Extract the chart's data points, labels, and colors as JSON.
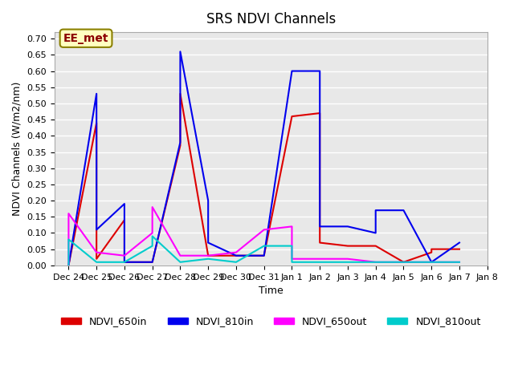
{
  "title": "SRS NDVI Channels",
  "xlabel": "Time",
  "ylabel": "NDVI Channels (W/m2/nm)",
  "annotation_text": "EE_met",
  "annotation_color": "#8B0000",
  "annotation_bg": "#FFFFC0",
  "annotation_border": "#8B8000",
  "ylim": [
    0.0,
    0.72
  ],
  "yticks": [
    0.0,
    0.05,
    0.1,
    0.15,
    0.2,
    0.25,
    0.3,
    0.35,
    0.4,
    0.45,
    0.5,
    0.55,
    0.6,
    0.65,
    0.7
  ],
  "background_color": "#E8E8E8",
  "grid_color": "#FFFFFF",
  "series": {
    "NDVI_650in": {
      "color": "#DD0000",
      "linewidth": 1.5,
      "x_days": [
        0,
        1,
        1,
        2,
        2,
        3,
        4,
        4,
        5,
        6,
        7,
        8,
        9,
        9,
        10,
        11,
        12,
        13,
        13,
        14
      ],
      "y": [
        0.0,
        0.44,
        0.02,
        0.14,
        0.01,
        0.01,
        0.37,
        0.53,
        0.03,
        0.03,
        0.03,
        0.46,
        0.47,
        0.07,
        0.06,
        0.06,
        0.01,
        0.04,
        0.05,
        0.05
      ]
    },
    "NDVI_810in": {
      "color": "#0000EE",
      "linewidth": 1.5,
      "x_days": [
        0,
        1,
        1,
        2,
        2,
        3,
        4,
        4,
        5,
        5,
        6,
        7,
        8,
        9,
        9,
        10,
        11,
        11,
        12,
        13,
        14
      ],
      "y": [
        0.0,
        0.53,
        0.11,
        0.19,
        0.01,
        0.01,
        0.38,
        0.66,
        0.2,
        0.07,
        0.03,
        0.03,
        0.6,
        0.6,
        0.12,
        0.12,
        0.1,
        0.17,
        0.17,
        0.01,
        0.07
      ]
    },
    "NDVI_650out": {
      "color": "#FF00FF",
      "linewidth": 1.5,
      "x_days": [
        0,
        0,
        1,
        2,
        3,
        3,
        4,
        5,
        6,
        7,
        8,
        8,
        9,
        10,
        11,
        12,
        13,
        14
      ],
      "y": [
        0.0,
        0.16,
        0.04,
        0.03,
        0.1,
        0.18,
        0.03,
        0.03,
        0.04,
        0.11,
        0.12,
        0.02,
        0.02,
        0.02,
        0.01,
        0.01,
        0.01,
        0.01
      ]
    },
    "NDVI_810out": {
      "color": "#00CCCC",
      "linewidth": 1.5,
      "x_days": [
        0,
        0,
        1,
        2,
        3,
        3,
        4,
        5,
        6,
        7,
        8,
        8,
        9,
        10,
        11,
        12,
        13,
        14
      ],
      "y": [
        0.0,
        0.08,
        0.01,
        0.01,
        0.06,
        0.09,
        0.01,
        0.02,
        0.01,
        0.06,
        0.06,
        0.01,
        0.01,
        0.01,
        0.01,
        0.01,
        0.01,
        0.01
      ]
    }
  },
  "x_tick_labels": [
    "Dec 24",
    "Dec 25",
    "Dec 26",
    "Dec 27",
    "Dec 28",
    "Dec 29",
    "Dec 30",
    "Dec 31",
    "Jan 1",
    "Jan 2",
    "Jan 3",
    "Jan 4",
    "Jan 5",
    "Jan 6",
    "Jan 7",
    "Jan 8"
  ]
}
